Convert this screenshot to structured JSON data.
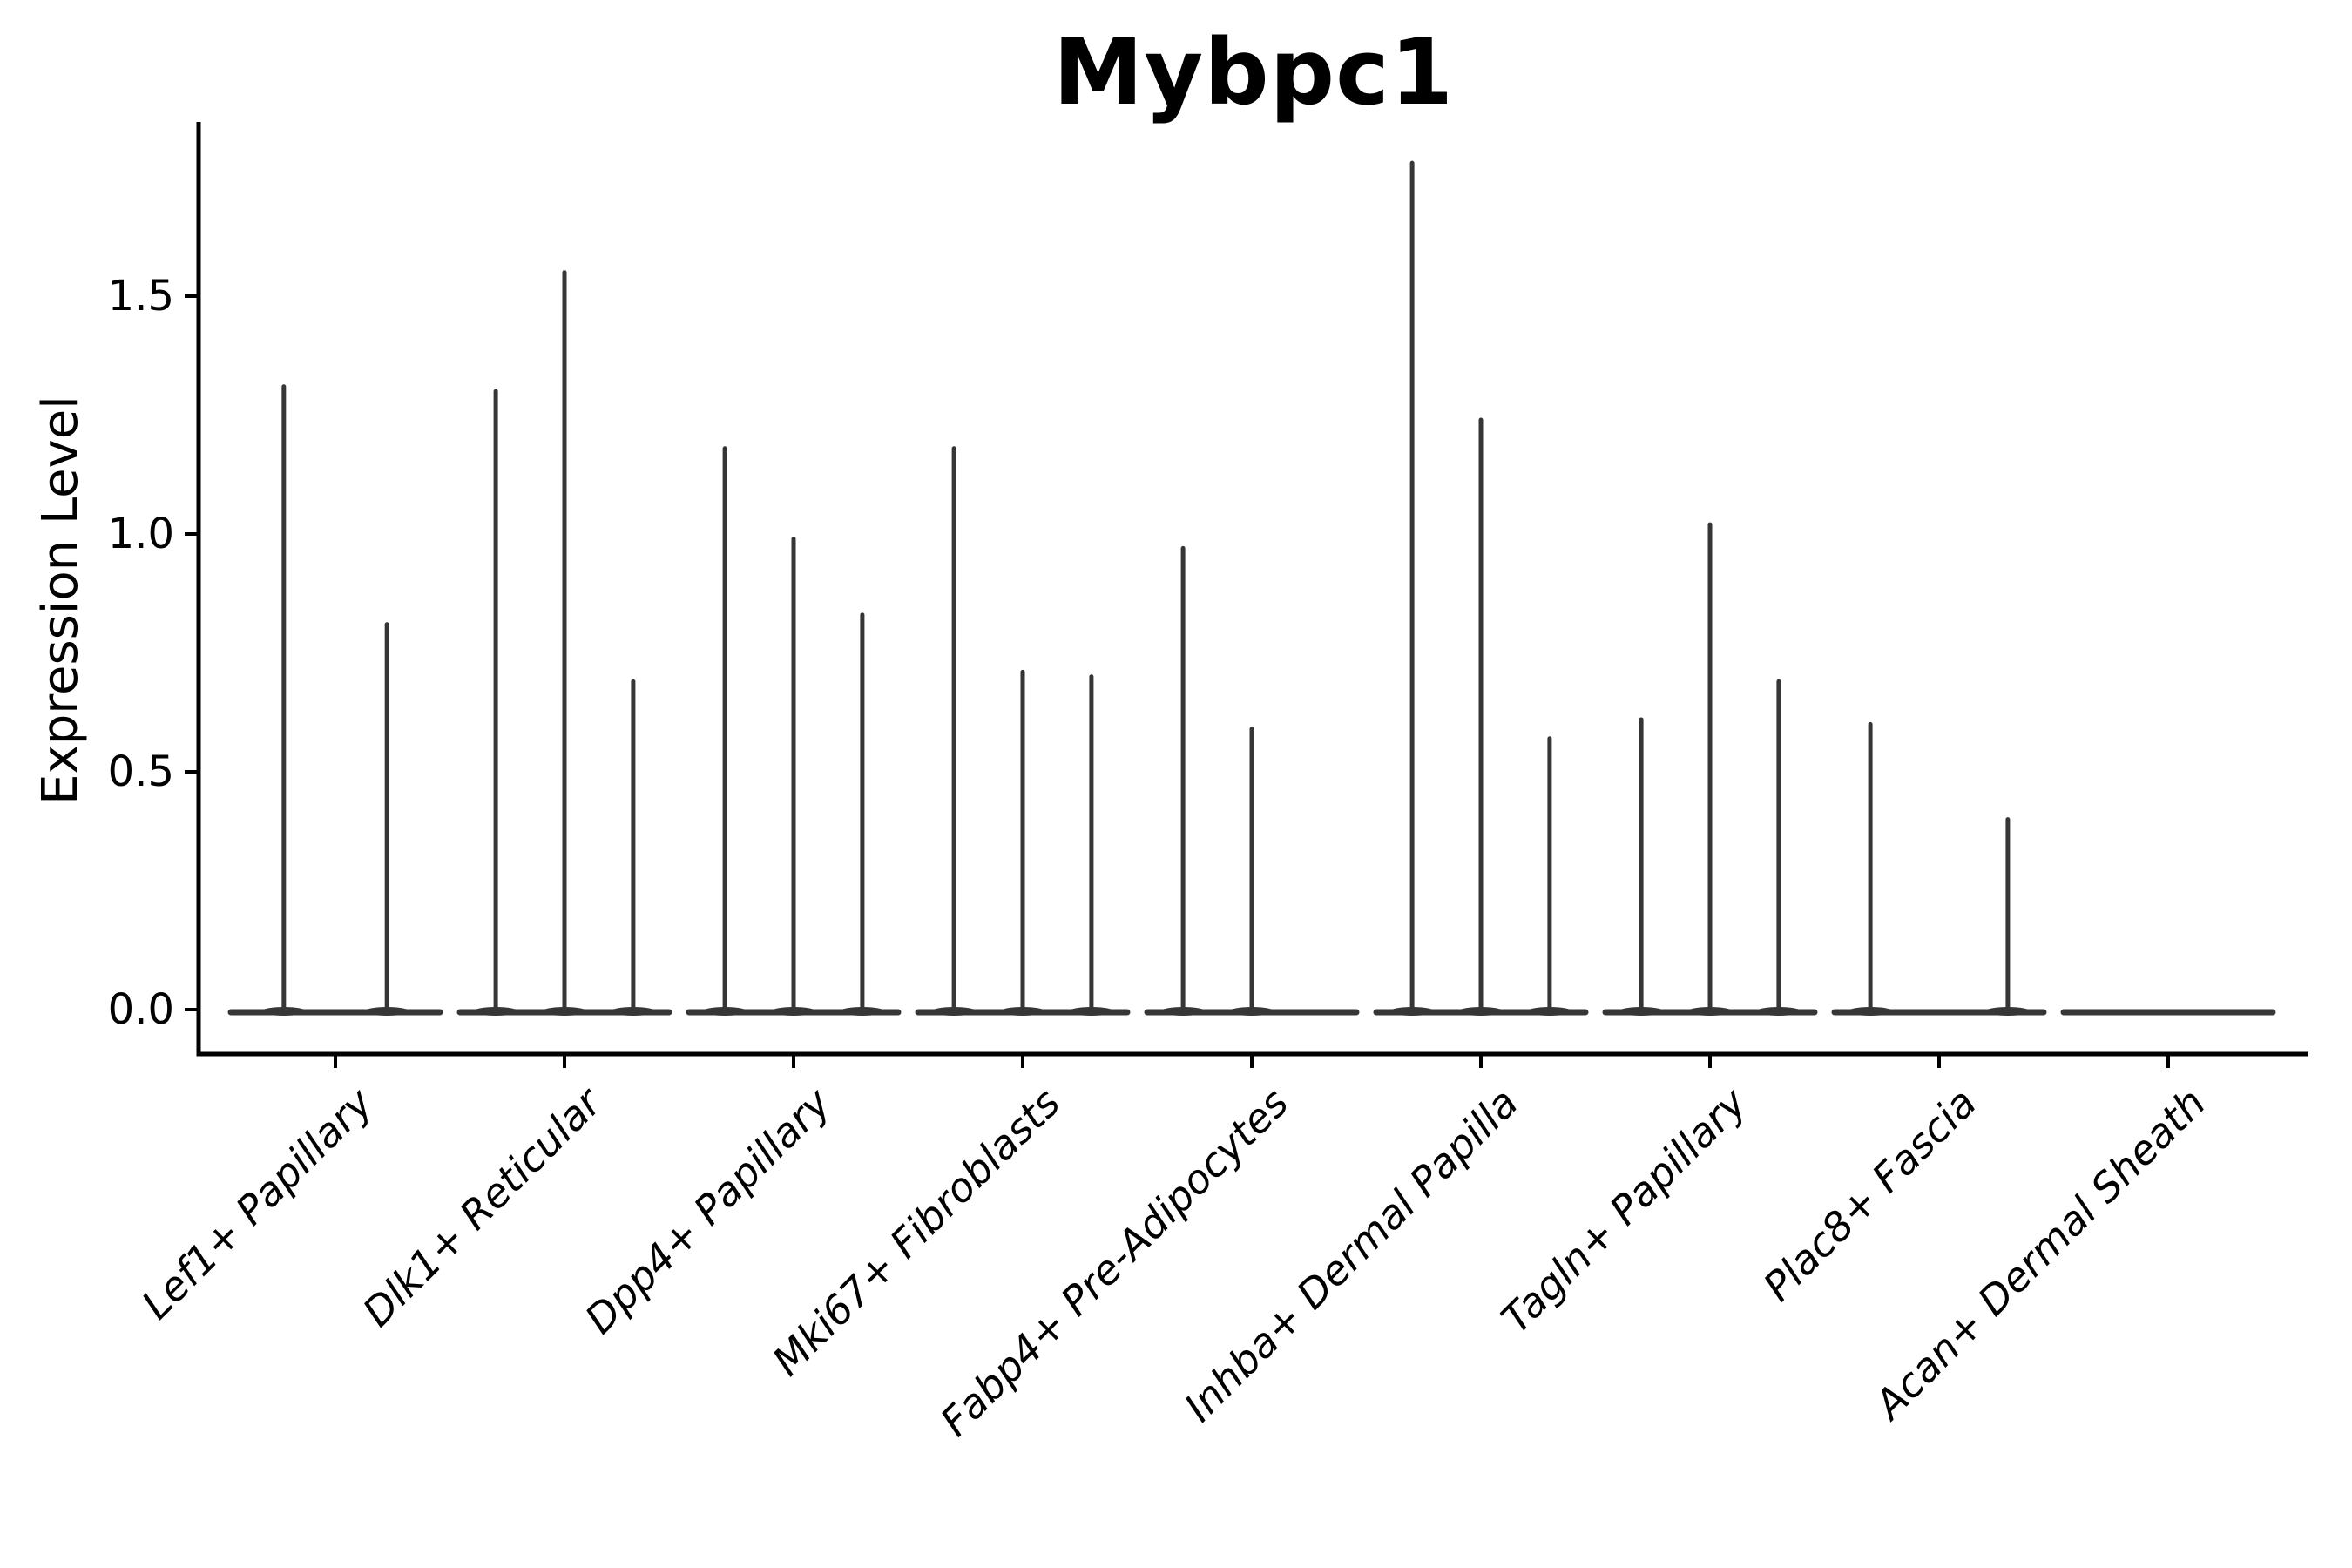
{
  "chart_data": {
    "type": "violin",
    "title": "Mybpc1",
    "ylabel": "Expression Level",
    "xlabel": "",
    "grid": false,
    "legend": "none",
    "ylim": [
      -0.09,
      1.87
    ],
    "yticks": [
      {
        "label": "0.0",
        "value": 0.0
      },
      {
        "label": "0.5",
        "value": 0.5
      },
      {
        "label": "1.0",
        "value": 1.0
      },
      {
        "label": "1.5",
        "value": 1.5
      }
    ],
    "categories": [
      "Lef1+ Papillary",
      "Dlk1+ Reticular",
      "Dpp4+ Papillary",
      "Mki67+ Fibroblasts",
      "Fabp4+ Pre-Adipocytes",
      "Inhba+ Dermal Papilla",
      "Tagln+ Papillary",
      "Plac8+ Fascia",
      "Acan+ Dermal Sheath"
    ],
    "violins": [
      {
        "category": "Lef1+ Papillary",
        "spikes": [
          {
            "pos": -0.225,
            "peak": 1.31
          },
          {
            "pos": 0.225,
            "peak": 0.81
          }
        ]
      },
      {
        "category": "Dlk1+ Reticular",
        "spikes": [
          {
            "pos": -0.3,
            "peak": 1.3
          },
          {
            "pos": 0.0,
            "peak": 1.55
          },
          {
            "pos": 0.3,
            "peak": 0.69
          }
        ]
      },
      {
        "category": "Dpp4+ Papillary",
        "spikes": [
          {
            "pos": -0.3,
            "peak": 1.18
          },
          {
            "pos": 0.0,
            "peak": 0.99
          },
          {
            "pos": 0.3,
            "peak": 0.83
          }
        ]
      },
      {
        "category": "Mki67+ Fibroblasts",
        "spikes": [
          {
            "pos": -0.3,
            "peak": 1.18
          },
          {
            "pos": 0.0,
            "peak": 0.71
          },
          {
            "pos": 0.3,
            "peak": 0.7
          }
        ]
      },
      {
        "category": "Fabp4+ Pre-Adipocytes",
        "spikes": [
          {
            "pos": -0.3,
            "peak": 0.97
          },
          {
            "pos": 0.0,
            "peak": 0.59
          }
        ]
      },
      {
        "category": "Inhba+ Dermal Papilla",
        "spikes": [
          {
            "pos": -0.3,
            "peak": 1.78
          },
          {
            "pos": 0.0,
            "peak": 1.24
          },
          {
            "pos": 0.3,
            "peak": 0.57
          }
        ]
      },
      {
        "category": "Tagln+ Papillary",
        "spikes": [
          {
            "pos": -0.3,
            "peak": 0.61
          },
          {
            "pos": 0.0,
            "peak": 1.02
          },
          {
            "pos": 0.3,
            "peak": 0.69
          }
        ]
      },
      {
        "category": "Plac8+ Fascia",
        "spikes": [
          {
            "pos": -0.3,
            "peak": 0.6
          },
          {
            "pos": 0.3,
            "peak": 0.4
          }
        ]
      },
      {
        "category": "Acan+ Dermal Sheath",
        "spikes": []
      }
    ],
    "colors": {
      "violin_stroke": "#363636",
      "axis": "#000000",
      "background": "#ffffff"
    }
  }
}
